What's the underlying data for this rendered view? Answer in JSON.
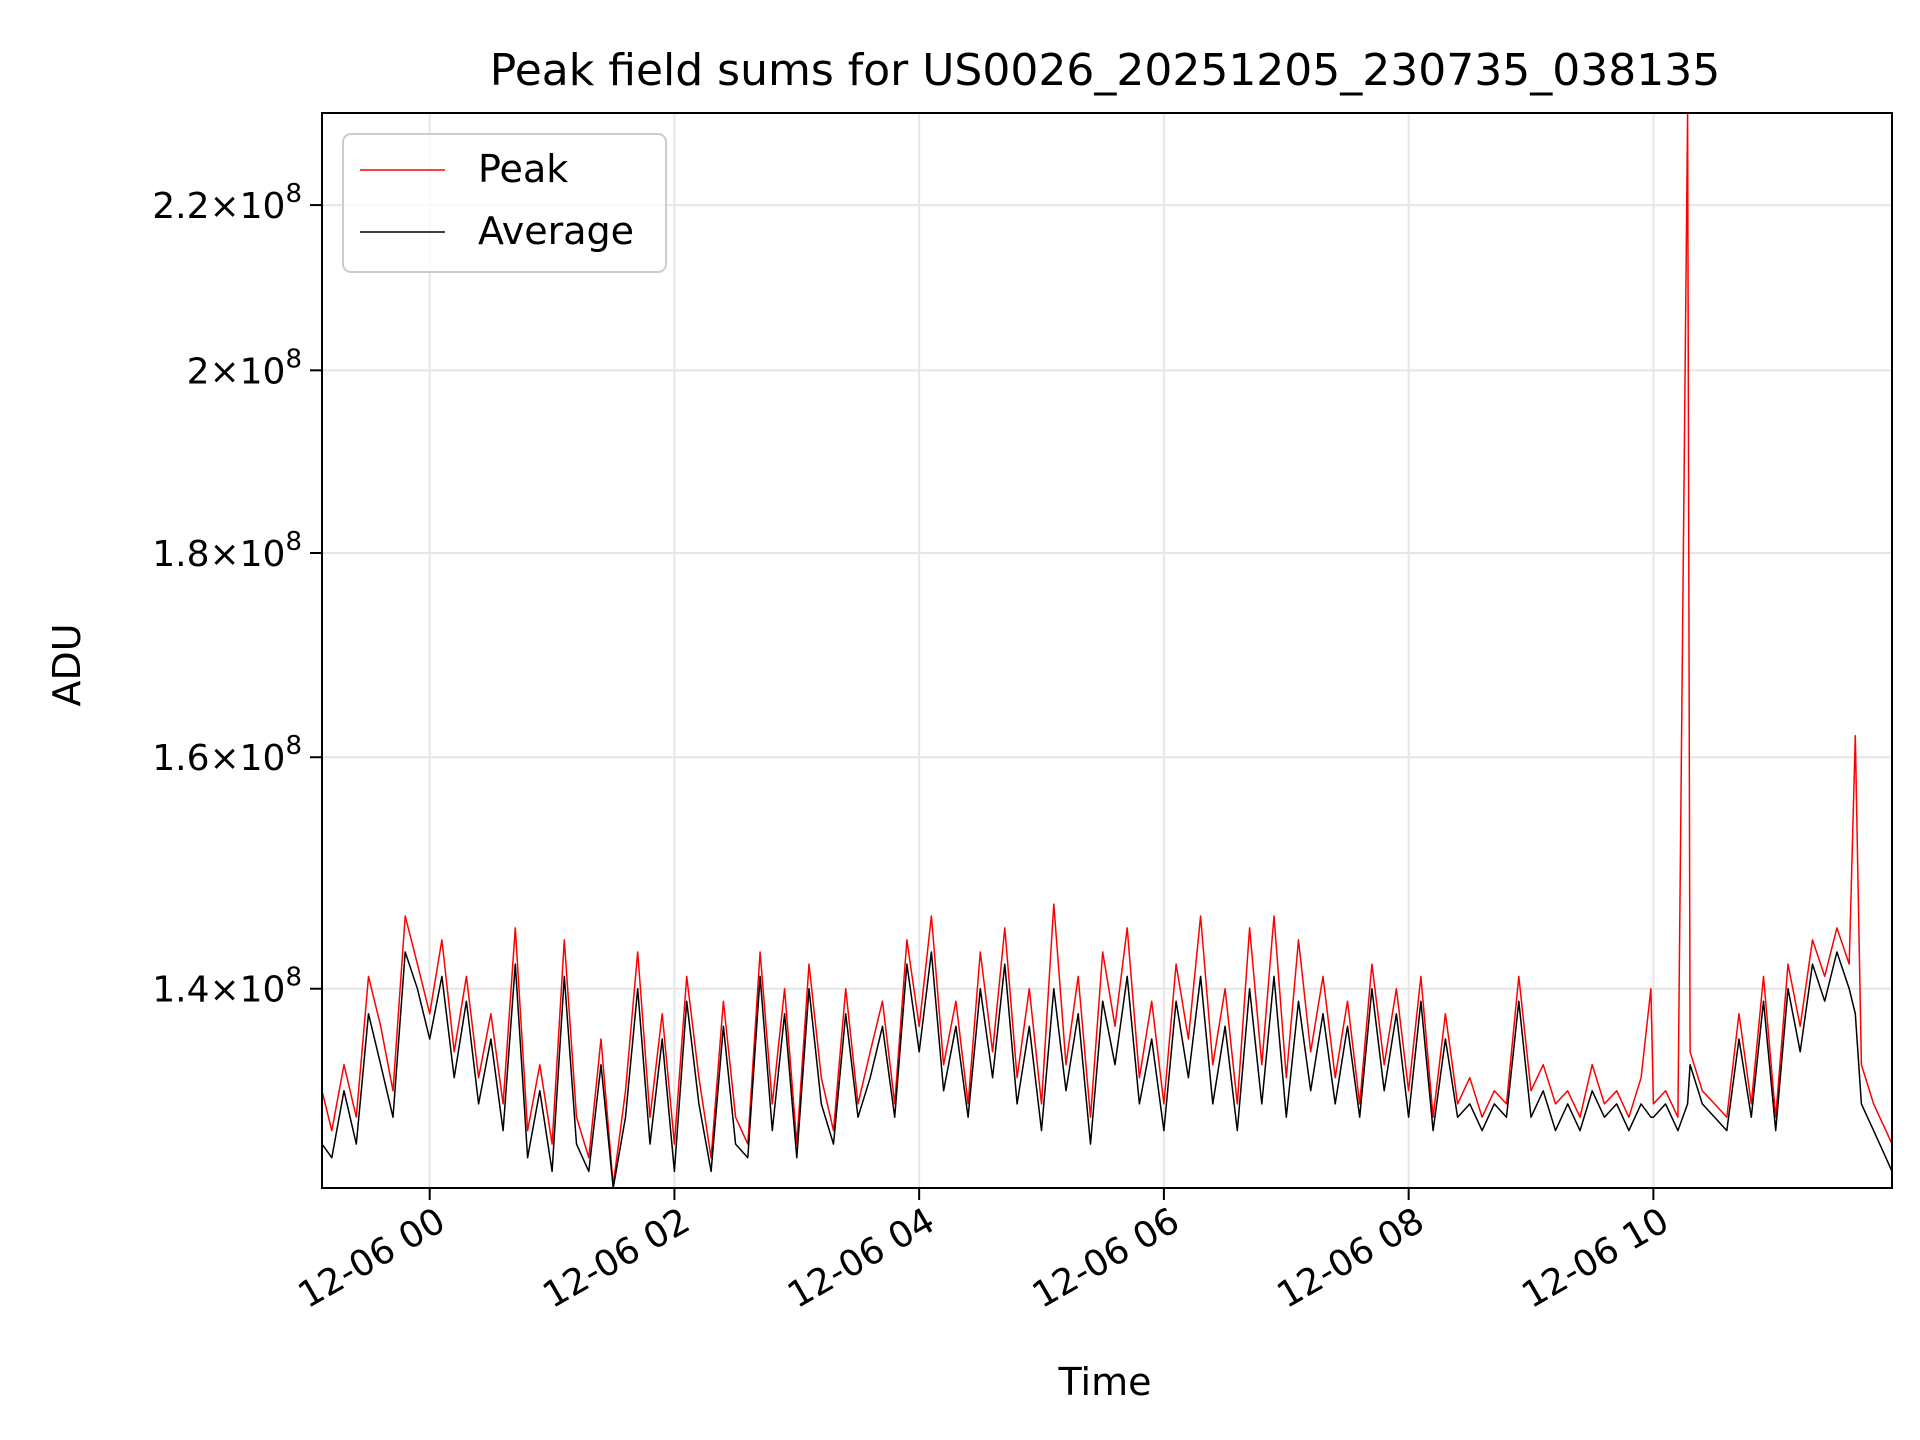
{
  "chart_data": {
    "type": "line",
    "title": "Peak field sums for US0026_20251205_230735_038135",
    "xlabel": "Time",
    "ylabel": "ADU",
    "yscale": "log",
    "x_range_hours": [
      -0.88,
      11.95
    ],
    "y_range": [
      124800000,
      232000000
    ],
    "grid": true,
    "legend_position": "upper-left",
    "x_ticks": [
      {
        "hour": 0,
        "label": "12-06 00"
      },
      {
        "hour": 2,
        "label": "12-06 02"
      },
      {
        "hour": 4,
        "label": "12-06 04"
      },
      {
        "hour": 6,
        "label": "12-06 06"
      },
      {
        "hour": 8,
        "label": "12-06 08"
      },
      {
        "hour": 10,
        "label": "12-06 10"
      }
    ],
    "y_ticks": [
      {
        "value": 140000000,
        "mantissa": "1.4",
        "exponent": "8"
      },
      {
        "value": 160000000,
        "mantissa": "1.6",
        "exponent": "8"
      },
      {
        "value": 180000000,
        "mantissa": "1.8",
        "exponent": "8"
      },
      {
        "value": 200000000,
        "mantissa": "2",
        "exponent": "8"
      },
      {
        "value": 220000000,
        "mantissa": "2.2",
        "exponent": "8"
      }
    ],
    "times_label": "x values are hours relative to 2025-12-06 00:00",
    "series": [
      {
        "name": "Peak",
        "color": "#ff0000",
        "x": [
          -0.88,
          -0.8,
          -0.7,
          -0.6,
          -0.5,
          -0.4,
          -0.3,
          -0.2,
          -0.1,
          0.0,
          0.1,
          0.2,
          0.3,
          0.4,
          0.5,
          0.6,
          0.7,
          0.8,
          0.9,
          1.0,
          1.1,
          1.2,
          1.3,
          1.4,
          1.5,
          1.6,
          1.7,
          1.8,
          1.9,
          2.0,
          2.1,
          2.2,
          2.3,
          2.4,
          2.5,
          2.6,
          2.7,
          2.8,
          2.9,
          3.0,
          3.1,
          3.2,
          3.3,
          3.4,
          3.5,
          3.6,
          3.7,
          3.8,
          3.9,
          4.0,
          4.1,
          4.2,
          4.3,
          4.4,
          4.5,
          4.6,
          4.7,
          4.8,
          4.9,
          5.0,
          5.1,
          5.2,
          5.3,
          5.4,
          5.5,
          5.6,
          5.7,
          5.8,
          5.9,
          6.0,
          6.1,
          6.2,
          6.3,
          6.4,
          6.5,
          6.6,
          6.7,
          6.8,
          6.9,
          7.0,
          7.1,
          7.2,
          7.3,
          7.4,
          7.5,
          7.6,
          7.7,
          7.8,
          7.9,
          8.0,
          8.1,
          8.2,
          8.3,
          8.4,
          8.5,
          8.6,
          8.7,
          8.8,
          8.9,
          9.0,
          9.1,
          9.2,
          9.3,
          9.4,
          9.5,
          9.6,
          9.7,
          9.8,
          9.9,
          9.98,
          10.0,
          10.1,
          10.2,
          10.28,
          10.3,
          10.4,
          10.5,
          10.6,
          10.7,
          10.8,
          10.9,
          11.0,
          11.1,
          11.2,
          11.3,
          11.4,
          11.5,
          11.6,
          11.65,
          11.7,
          11.8,
          11.9,
          11.95
        ],
        "values": [
          132000000,
          129000000,
          134000000,
          130000000,
          141000000,
          137000000,
          132000000,
          146000000,
          142000000,
          138000000,
          144000000,
          135000000,
          141000000,
          133000000,
          138000000,
          131000000,
          145000000,
          129000000,
          134000000,
          128000000,
          144000000,
          130000000,
          127000000,
          136000000,
          125000000,
          132000000,
          143000000,
          130000000,
          138000000,
          128000000,
          141000000,
          133000000,
          127000000,
          139000000,
          130000000,
          128000000,
          143000000,
          131000000,
          140000000,
          128000000,
          142000000,
          133000000,
          129000000,
          140000000,
          131000000,
          135000000,
          139000000,
          131000000,
          144000000,
          137000000,
          146000000,
          134000000,
          139000000,
          131000000,
          143000000,
          135000000,
          145000000,
          133000000,
          140000000,
          131000000,
          147000000,
          134000000,
          141000000,
          130000000,
          143000000,
          137000000,
          145000000,
          133000000,
          139000000,
          131000000,
          142000000,
          136000000,
          146000000,
          134000000,
          140000000,
          131000000,
          145000000,
          134000000,
          146000000,
          133000000,
          144000000,
          135000000,
          141000000,
          133000000,
          139000000,
          131000000,
          142000000,
          134000000,
          140000000,
          132000000,
          141000000,
          130000000,
          138000000,
          131000000,
          133000000,
          130000000,
          132000000,
          131000000,
          141000000,
          132000000,
          134000000,
          131000000,
          132000000,
          130000000,
          134000000,
          131000000,
          132000000,
          130000000,
          133000000,
          140000000,
          131000000,
          132000000,
          130000000,
          232000000,
          135000000,
          132000000,
          131000000,
          130000000,
          138000000,
          131000000,
          141000000,
          130000000,
          142000000,
          137000000,
          144000000,
          141000000,
          145000000,
          142000000,
          162000000,
          134000000,
          131000000,
          129000000,
          128000000
        ]
      },
      {
        "name": "Average",
        "color": "#000000",
        "x": [
          -0.88,
          -0.8,
          -0.7,
          -0.6,
          -0.5,
          -0.4,
          -0.3,
          -0.2,
          -0.1,
          0.0,
          0.1,
          0.2,
          0.3,
          0.4,
          0.5,
          0.6,
          0.7,
          0.8,
          0.9,
          1.0,
          1.1,
          1.2,
          1.3,
          1.4,
          1.5,
          1.6,
          1.7,
          1.8,
          1.9,
          2.0,
          2.1,
          2.2,
          2.3,
          2.4,
          2.5,
          2.6,
          2.7,
          2.8,
          2.9,
          3.0,
          3.1,
          3.2,
          3.3,
          3.4,
          3.5,
          3.6,
          3.7,
          3.8,
          3.9,
          4.0,
          4.1,
          4.2,
          4.3,
          4.4,
          4.5,
          4.6,
          4.7,
          4.8,
          4.9,
          5.0,
          5.1,
          5.2,
          5.3,
          5.4,
          5.5,
          5.6,
          5.7,
          5.8,
          5.9,
          6.0,
          6.1,
          6.2,
          6.3,
          6.4,
          6.5,
          6.6,
          6.7,
          6.8,
          6.9,
          7.0,
          7.1,
          7.2,
          7.3,
          7.4,
          7.5,
          7.6,
          7.7,
          7.8,
          7.9,
          8.0,
          8.1,
          8.2,
          8.3,
          8.4,
          8.5,
          8.6,
          8.7,
          8.8,
          8.9,
          9.0,
          9.1,
          9.2,
          9.3,
          9.4,
          9.5,
          9.6,
          9.7,
          9.8,
          9.9,
          9.98,
          10.0,
          10.1,
          10.2,
          10.28,
          10.3,
          10.4,
          10.5,
          10.6,
          10.7,
          10.8,
          10.9,
          11.0,
          11.1,
          11.2,
          11.3,
          11.4,
          11.5,
          11.6,
          11.65,
          11.7,
          11.8,
          11.9,
          11.95
        ],
        "values": [
          128000000,
          127000000,
          132000000,
          128000000,
          138000000,
          134000000,
          130000000,
          143000000,
          140000000,
          136000000,
          141000000,
          133000000,
          139000000,
          131000000,
          136000000,
          129000000,
          142000000,
          127000000,
          132000000,
          126000000,
          141000000,
          128000000,
          126000000,
          134000000,
          124800000,
          130000000,
          140000000,
          128000000,
          136000000,
          126000000,
          139000000,
          131000000,
          126000000,
          137000000,
          128000000,
          127000000,
          141000000,
          129000000,
          138000000,
          127000000,
          140000000,
          131000000,
          128000000,
          138000000,
          130000000,
          133000000,
          137000000,
          130000000,
          142000000,
          135000000,
          143000000,
          132000000,
          137000000,
          130000000,
          140000000,
          133000000,
          142000000,
          131000000,
          137000000,
          129000000,
          140000000,
          132000000,
          138000000,
          128000000,
          139000000,
          134000000,
          141000000,
          131000000,
          136000000,
          129000000,
          139000000,
          133000000,
          141000000,
          131000000,
          137000000,
          129000000,
          140000000,
          131000000,
          141000000,
          130000000,
          139000000,
          132000000,
          138000000,
          131000000,
          137000000,
          130000000,
          140000000,
          132000000,
          138000000,
          130000000,
          139000000,
          129000000,
          136000000,
          130000000,
          131000000,
          129000000,
          131000000,
          130000000,
          139000000,
          130000000,
          132000000,
          129000000,
          131000000,
          129000000,
          132000000,
          130000000,
          131000000,
          129000000,
          131000000,
          130000000,
          130000000,
          131000000,
          129000000,
          131000000,
          134000000,
          131000000,
          130000000,
          129000000,
          136000000,
          130000000,
          139000000,
          129000000,
          140000000,
          135000000,
          142000000,
          139000000,
          143000000,
          140000000,
          138000000,
          131000000,
          129000000,
          127000000,
          126000000
        ]
      }
    ]
  }
}
